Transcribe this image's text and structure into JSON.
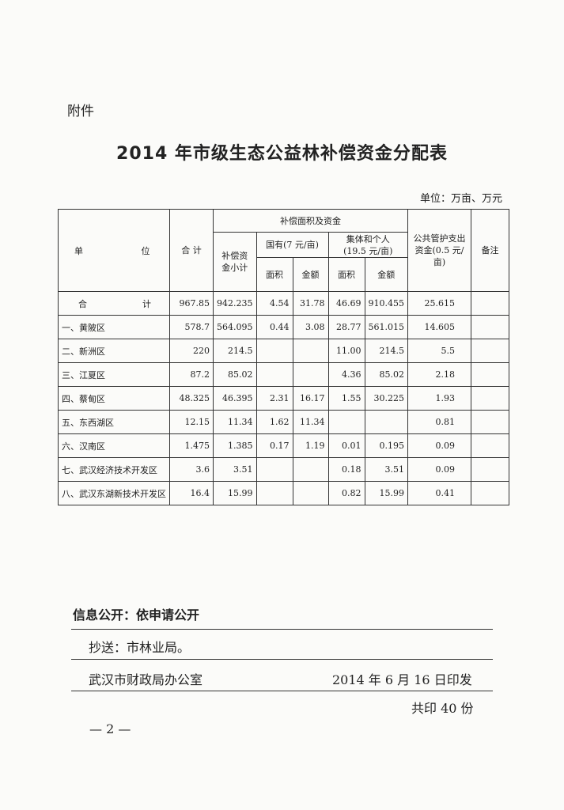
{
  "attachment": "附件",
  "title": "2014 年市级生态公益林补偿资金分配表",
  "unit": "单位：万亩、万元",
  "table": {
    "headers": {
      "unit": "单 位",
      "total": "合 计",
      "group": "补偿面积及资金",
      "subtotal": "补偿资金小计",
      "state": "国有(7 元/亩)",
      "collective": "集体和个人(19.5 元/亩)",
      "area": "面积",
      "amount": "金额",
      "public": "公共管护支出资金(0.5 元/亩)",
      "remark": "备注"
    },
    "total_row": {
      "label_a": "合",
      "label_b": "计",
      "values": [
        "967.85",
        "942.235",
        "4.54",
        "31.78",
        "46.69",
        "910.455",
        "25.615",
        ""
      ]
    },
    "rows": [
      {
        "name": "一、黄陂区",
        "values": [
          "578.7",
          "564.095",
          "0.44",
          "3.08",
          "28.77",
          "561.015",
          "14.605",
          ""
        ]
      },
      {
        "name": "二、新洲区",
        "values": [
          "220",
          "214.5",
          "",
          "",
          "11.00",
          "214.5",
          "5.5",
          ""
        ]
      },
      {
        "name": "三、江夏区",
        "values": [
          "87.2",
          "85.02",
          "",
          "",
          "4.36",
          "85.02",
          "2.18",
          ""
        ]
      },
      {
        "name": "四、蔡甸区",
        "values": [
          "48.325",
          "46.395",
          "2.31",
          "16.17",
          "1.55",
          "30.225",
          "1.93",
          ""
        ]
      },
      {
        "name": "五、东西湖区",
        "values": [
          "12.15",
          "11.34",
          "1.62",
          "11.34",
          "",
          "",
          "0.81",
          ""
        ]
      },
      {
        "name": "六、汉南区",
        "values": [
          "1.475",
          "1.385",
          "0.17",
          "1.19",
          "0.01",
          "0.195",
          "0.09",
          ""
        ]
      },
      {
        "name": "七、武汉经济技术开发区",
        "values": [
          "3.6",
          "3.51",
          "",
          "",
          "0.18",
          "3.51",
          "0.09",
          ""
        ]
      },
      {
        "name": "八、武汉东湖新技术开发区",
        "values": [
          "16.4",
          "15.99",
          "",
          "",
          "0.82",
          "15.99",
          "0.41",
          ""
        ]
      }
    ]
  },
  "footer": {
    "info": "信息公开：依申请公开",
    "cc": "抄送：市林业局。",
    "issuer": "武汉市财政局办公室",
    "date": "2014 年 6 月 16 日印发",
    "copies": "共印 40 份",
    "page": "— 2 —"
  }
}
